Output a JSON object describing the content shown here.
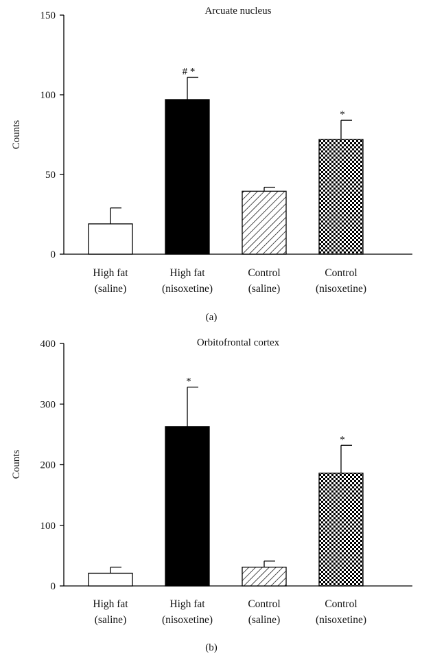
{
  "chart_data": [
    {
      "type": "bar",
      "title": "Arcuate nucleus",
      "panel_label": "(a)",
      "ylabel": "Counts",
      "ylim": [
        0,
        150
      ],
      "yticks": [
        0,
        50,
        100,
        150
      ],
      "categories": [
        {
          "line1": "High fat",
          "line2": "(saline)"
        },
        {
          "line1": "High fat",
          "line2": "(nisoxetine)"
        },
        {
          "line1": "Control",
          "line2": "(saline)"
        },
        {
          "line1": "Control",
          "line2": "(nisoxetine)"
        }
      ],
      "values": [
        19,
        97,
        39.5,
        72
      ],
      "errors": [
        10,
        14,
        2.5,
        12
      ],
      "fills": [
        "white",
        "black",
        "hatch",
        "checker"
      ],
      "annotations": [
        "",
        "# *",
        "",
        "*"
      ],
      "grid": false
    },
    {
      "type": "bar",
      "title": "Orbitofrontal cortex",
      "panel_label": "(b)",
      "ylabel": "Counts",
      "ylim": [
        0,
        400
      ],
      "yticks": [
        0,
        100,
        200,
        300,
        400
      ],
      "categories": [
        {
          "line1": "High fat",
          "line2": "(saline)"
        },
        {
          "line1": "High fat",
          "line2": "(nisoxetine)"
        },
        {
          "line1": "Control",
          "line2": "(saline)"
        },
        {
          "line1": "Control",
          "line2": "(nisoxetine)"
        }
      ],
      "values": [
        21,
        263,
        31,
        186
      ],
      "errors": [
        10,
        65,
        10,
        46
      ],
      "fills": [
        "white",
        "black",
        "hatch",
        "checker"
      ],
      "annotations": [
        "",
        "*",
        "",
        "*"
      ],
      "grid": false
    }
  ]
}
